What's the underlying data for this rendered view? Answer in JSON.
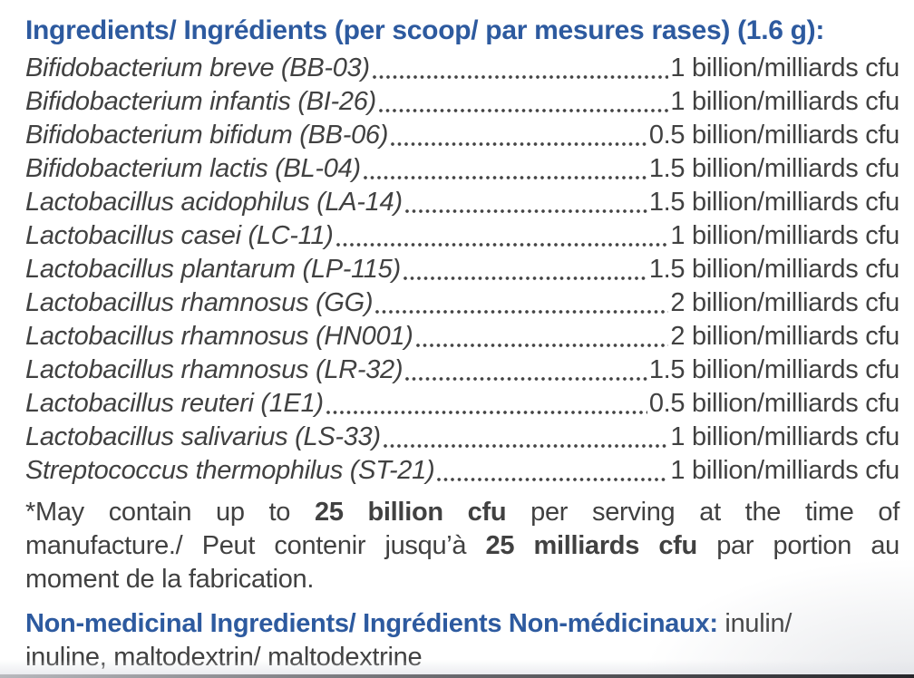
{
  "colors": {
    "accent_blue": "#2d5a9f",
    "body_text": "#414141",
    "background": "#ffffff"
  },
  "header": {
    "title": "Ingredients/ Ingrédients (per scoop/ par mesures rases) (1.6 g):"
  },
  "ingredients": [
    {
      "label": "Bifidobacterium breve (BB-03)",
      "amount": "1",
      "unit": "billion/milliards cfu"
    },
    {
      "label": "Bifidobacterium infantis (BI-26)",
      "amount": "1",
      "unit": "billion/milliards cfu"
    },
    {
      "label": "Bifidobacterium bifidum (BB-06)",
      "amount": "0.5",
      "unit": "billion/milliards cfu"
    },
    {
      "label": "Bifidobacterium lactis (BL-04)",
      "amount": "1.5",
      "unit": "billion/milliards cfu"
    },
    {
      "label": "Lactobacillus acidophilus (LA-14)",
      "amount": "1.5",
      "unit": "billion/milliards cfu"
    },
    {
      "label": "Lactobacillus casei (LC-11)",
      "amount": "1",
      "unit": "billion/milliards cfu"
    },
    {
      "label": "Lactobacillus plantarum (LP-115)",
      "amount": "1.5",
      "unit": "billion/milliards cfu"
    },
    {
      "label": "Lactobacillus rhamnosus (GG)",
      "amount": "2",
      "unit": "billion/milliards cfu"
    },
    {
      "label": "Lactobacillus rhamnosus (HN001)",
      "amount": "2",
      "unit": "billion/milliards cfu"
    },
    {
      "label": "Lactobacillus rhamnosus (LR-32)",
      "amount": "1.5",
      "unit": "billion/milliards cfu"
    },
    {
      "label": "Lactobacillus reuteri (1E1)",
      "amount": "0.5",
      "unit": "billion/milliards cfu"
    },
    {
      "label": "Lactobacillus salivarius (LS-33)",
      "amount": "1",
      "unit": "billion/milliards cfu"
    },
    {
      "label": "Streptococcus thermophilus (ST-21)",
      "amount": "1",
      "unit": "billion/milliards cfu"
    }
  ],
  "footnote": {
    "line1_pre": "*May contain up to ",
    "line1_bold": "25 billion cfu",
    "line1_post": " per serving at the time of",
    "line2_pre": "manufacture./ Peut contenir jusqu’à ",
    "line2_bold": "25 milliards cfu",
    "line2_post": " par portion au",
    "line3": "moment de la fabrication."
  },
  "non_medicinal": {
    "label": "Non-medicinal Ingredients/ Ingrédients Non-médicinaux:",
    "line1_rest": " inulin/",
    "line2": "inuline, maltodextrin/ maltodextrine"
  }
}
